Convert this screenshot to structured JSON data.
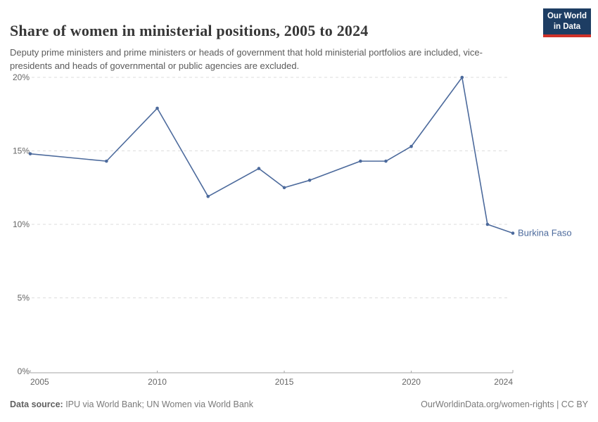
{
  "header": {
    "title": "Share of women in ministerial positions, 2005 to 2024",
    "subtitle": "Deputy prime ministers and prime ministers or heads of government that hold ministerial portfolios are included, vice-presidents and heads of governmental or public agencies are excluded.",
    "logo": {
      "line1": "Our World",
      "line2": "in Data",
      "bg_color": "#1d3d63",
      "accent_color": "#cf3229"
    }
  },
  "chart_data": {
    "type": "line",
    "title": "Share of women in ministerial positions, 2005 to 2024",
    "xlabel": "",
    "ylabel": "",
    "xlim": [
      2005,
      2024
    ],
    "ylim": [
      0,
      20
    ],
    "x_ticks": [
      2005,
      2010,
      2015,
      2020,
      2024
    ],
    "y_ticks": [
      0,
      5,
      10,
      15,
      20
    ],
    "y_tick_suffix": "%",
    "grid": "horizontal-dashed",
    "legend_position": "end-of-line-label",
    "series": [
      {
        "name": "Burkina Faso",
        "color": "#4c6a9c",
        "x": [
          2005,
          2008,
          2010,
          2012,
          2014,
          2015,
          2016,
          2018,
          2019,
          2020,
          2022,
          2023,
          2024
        ],
        "values": [
          14.8,
          14.3,
          17.9,
          11.9,
          13.8,
          12.5,
          13.0,
          14.3,
          14.3,
          15.3,
          20.0,
          10.0,
          9.4
        ]
      }
    ]
  },
  "footer": {
    "source_label": "Data source:",
    "source_text": " IPU via World Bank; UN Women via World Bank",
    "link_text": "OurWorldinData.org/women-rights | CC BY"
  },
  "colors": {
    "line": "#4c6a9c",
    "gridline": "#dcdcdc",
    "axis_line": "#a5a5a5",
    "tick_text": "#666666",
    "title_text": "#373737",
    "subtitle_text": "#5b5b5b"
  }
}
